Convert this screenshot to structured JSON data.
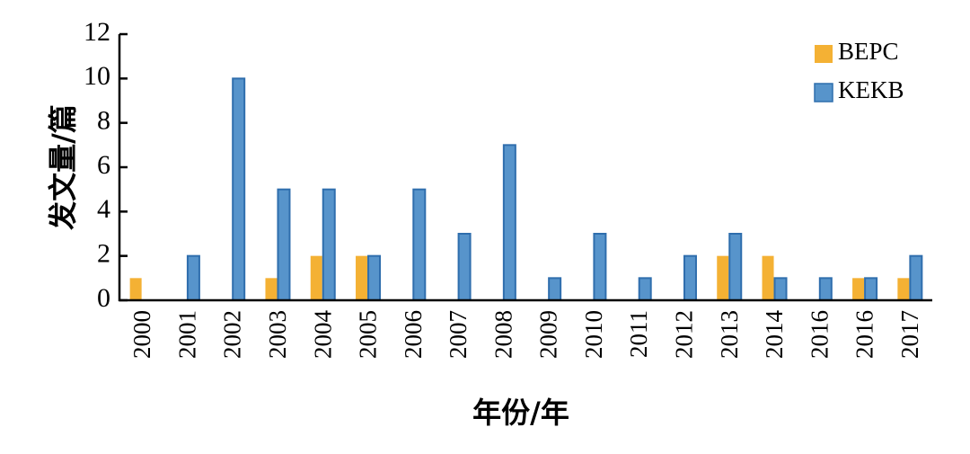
{
  "chart_data": {
    "type": "bar",
    "title": "",
    "xlabel": "年份/年",
    "ylabel": "发文量/篇",
    "ylim": [
      0,
      12
    ],
    "yticks": [
      0,
      2,
      4,
      6,
      8,
      10,
      12
    ],
    "grid": false,
    "legend_position": "top-right",
    "categories": [
      "2000",
      "2001",
      "2002",
      "2003",
      "2004",
      "2005",
      "2006",
      "2007",
      "2008",
      "2009",
      "2010",
      "2011",
      "2012",
      "2013",
      "2014",
      "2016",
      "2016",
      "2017"
    ],
    "series": [
      {
        "name": "BEPC",
        "color": "#F4B134",
        "values": [
          1,
          0,
          0,
          1,
          2,
          2,
          0,
          0,
          0,
          0,
          0,
          0,
          0,
          2,
          2,
          0,
          1,
          1
        ]
      },
      {
        "name": "KEKB",
        "color": "#5794CB",
        "stroke": "#2F6EAD",
        "values": [
          0,
          2,
          10,
          5,
          5,
          2,
          5,
          3,
          7,
          1,
          3,
          1,
          2,
          3,
          1,
          1,
          1,
          2
        ]
      }
    ]
  }
}
